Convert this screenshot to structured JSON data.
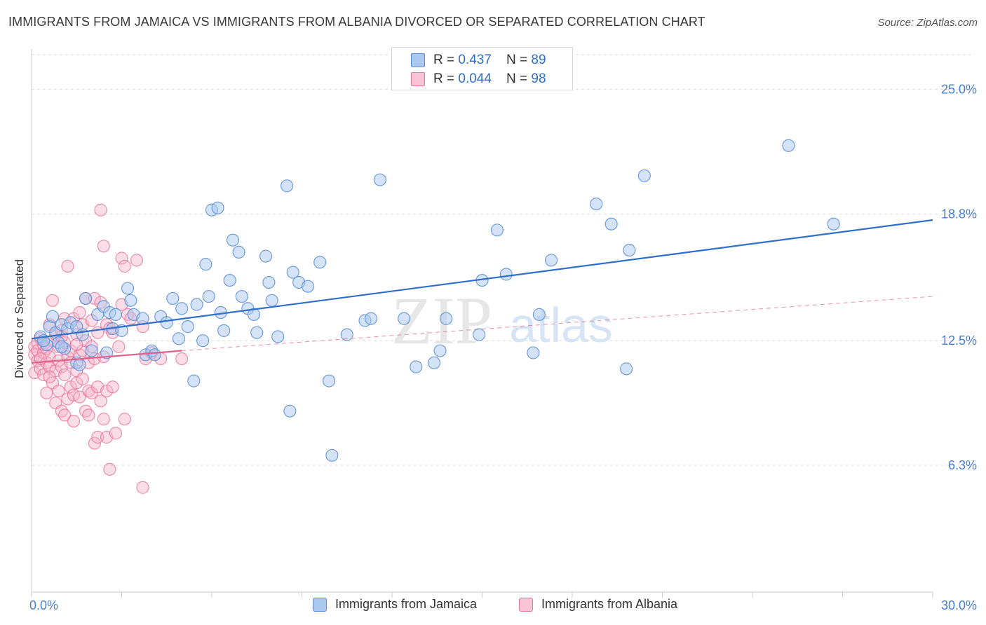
{
  "title": "IMMIGRANTS FROM JAMAICA VS IMMIGRANTS FROM ALBANIA DIVORCED OR SEPARATED CORRELATION CHART",
  "source": "Source: ZipAtlas.com",
  "watermark": {
    "zip": "ZIP",
    "atlas": "atlas"
  },
  "legend_box": {
    "rows": [
      {
        "r_label": "R = ",
        "r_value": "0.437",
        "n_label": "N = ",
        "n_value": "89"
      },
      {
        "r_label": "R = ",
        "r_value": "0.044",
        "n_label": "N = ",
        "n_value": "98"
      }
    ]
  },
  "bottom_legend": [
    "Immigrants from Jamaica",
    "Immigrants from Albania"
  ],
  "colors": {
    "jamaica_fill": "#aac8f0",
    "jamaica_stroke": "#5b8ed6",
    "jamaica_line": "#2f6fc9",
    "albania_fill": "#f7b3ca",
    "albania_stroke": "#e8759c",
    "albania_line": "#e0608c",
    "tick_label": "#4a7fcf",
    "grid": "#dddddd"
  },
  "chart_data": {
    "type": "scatter",
    "title": "IMMIGRANTS FROM JAMAICA VS IMMIGRANTS FROM ALBANIA DIVORCED OR SEPARATED CORRELATION CHART",
    "xlabel": "",
    "ylabel": "Divorced or Separated",
    "xlim": [
      0,
      30
    ],
    "ylim": [
      0,
      27
    ],
    "x_tick_labels": [
      {
        "value": 0,
        "label": "0.0%"
      },
      {
        "value": 30,
        "label": "30.0%"
      }
    ],
    "y_tick_labels": [
      {
        "value": 6.3,
        "label": "6.3%"
      },
      {
        "value": 12.5,
        "label": "12.5%"
      },
      {
        "value": 18.8,
        "label": "18.8%"
      },
      {
        "value": 25.0,
        "label": "25.0%"
      }
    ],
    "grid": true,
    "legend": "top-center",
    "series": [
      {
        "name": "Immigrants from Jamaica",
        "R": 0.437,
        "N": 89,
        "trend": {
          "x": [
            0.0,
            30.0
          ],
          "y": [
            12.6,
            18.5
          ]
        },
        "points": [
          [
            0.3,
            12.7
          ],
          [
            0.5,
            12.3
          ],
          [
            0.6,
            13.2
          ],
          [
            0.7,
            13.7
          ],
          [
            0.8,
            12.9
          ],
          [
            0.9,
            12.4
          ],
          [
            1.0,
            13.3
          ],
          [
            1.1,
            12.1
          ],
          [
            1.2,
            13.1
          ],
          [
            1.3,
            13.4
          ],
          [
            1.5,
            13.2
          ],
          [
            1.5,
            11.4
          ],
          [
            1.7,
            12.8
          ],
          [
            1.8,
            14.6
          ],
          [
            2.2,
            13.8
          ],
          [
            2.4,
            14.2
          ],
          [
            2.6,
            13.9
          ],
          [
            2.7,
            13.1
          ],
          [
            2.8,
            13.8
          ],
          [
            3.2,
            15.1
          ],
          [
            3.3,
            14.5
          ],
          [
            3.4,
            13.8
          ],
          [
            3.7,
            13.6
          ],
          [
            3.8,
            11.8
          ],
          [
            4.0,
            12.0
          ],
          [
            4.3,
            13.7
          ],
          [
            4.5,
            13.4
          ],
          [
            4.7,
            14.6
          ],
          [
            4.9,
            12.6
          ],
          [
            5.0,
            14.1
          ],
          [
            5.2,
            13.2
          ],
          [
            5.5,
            14.3
          ],
          [
            5.4,
            10.5
          ],
          [
            5.7,
            12.5
          ],
          [
            5.8,
            16.3
          ],
          [
            5.9,
            14.7
          ],
          [
            6.0,
            19.0
          ],
          [
            6.2,
            19.1
          ],
          [
            6.3,
            13.9
          ],
          [
            6.6,
            15.5
          ],
          [
            6.7,
            17.5
          ],
          [
            6.9,
            16.9
          ],
          [
            7.0,
            14.7
          ],
          [
            7.2,
            14.1
          ],
          [
            7.4,
            13.8
          ],
          [
            7.5,
            12.9
          ],
          [
            7.8,
            16.7
          ],
          [
            7.9,
            15.4
          ],
          [
            8.0,
            14.5
          ],
          [
            8.2,
            12.7
          ],
          [
            8.5,
            20.2
          ],
          [
            8.6,
            9.0
          ],
          [
            8.7,
            15.9
          ],
          [
            8.9,
            15.4
          ],
          [
            9.2,
            15.2
          ],
          [
            9.6,
            16.4
          ],
          [
            9.9,
            10.5
          ],
          [
            10.0,
            6.8
          ],
          [
            10.5,
            12.8
          ],
          [
            11.1,
            13.5
          ],
          [
            11.3,
            13.6
          ],
          [
            11.6,
            20.5
          ],
          [
            12.4,
            13.6
          ],
          [
            12.8,
            11.2
          ],
          [
            13.4,
            11.4
          ],
          [
            13.6,
            12.0
          ],
          [
            13.8,
            13.6
          ],
          [
            14.9,
            12.8
          ],
          [
            15.0,
            15.5
          ],
          [
            15.5,
            18.0
          ],
          [
            15.8,
            15.8
          ],
          [
            16.7,
            11.9
          ],
          [
            16.9,
            13.8
          ],
          [
            17.3,
            16.5
          ],
          [
            18.8,
            19.3
          ],
          [
            19.3,
            18.3
          ],
          [
            19.8,
            11.1
          ],
          [
            19.9,
            17.0
          ],
          [
            20.4,
            20.7
          ],
          [
            25.2,
            22.2
          ],
          [
            26.7,
            18.3
          ],
          [
            1.0,
            12.2
          ],
          [
            2.0,
            12.0
          ],
          [
            0.4,
            12.5
          ],
          [
            3.0,
            13.0
          ],
          [
            1.6,
            11.3
          ],
          [
            2.5,
            11.9
          ],
          [
            4.1,
            11.8
          ],
          [
            6.4,
            13.0
          ]
        ]
      },
      {
        "name": "Immigrants from Albania",
        "R": 0.044,
        "N": 98,
        "trend": {
          "x": [
            0.0,
            5.0
          ],
          "y": [
            11.4,
            12.0
          ]
        },
        "trend_dashed": {
          "x": [
            5.0,
            30.0
          ],
          "y": [
            12.0,
            14.7
          ]
        },
        "points": [
          [
            0.1,
            12.2
          ],
          [
            0.1,
            11.8
          ],
          [
            0.1,
            10.9
          ],
          [
            0.2,
            11.5
          ],
          [
            0.2,
            12.4
          ],
          [
            0.2,
            12.0
          ],
          [
            0.3,
            11.1
          ],
          [
            0.3,
            12.6
          ],
          [
            0.4,
            11.9
          ],
          [
            0.4,
            12.3
          ],
          [
            0.4,
            10.8
          ],
          [
            0.5,
            11.4
          ],
          [
            0.5,
            12.1
          ],
          [
            0.5,
            9.9
          ],
          [
            0.6,
            11.7
          ],
          [
            0.6,
            13.3
          ],
          [
            0.6,
            11.2
          ],
          [
            0.7,
            12.5
          ],
          [
            0.7,
            10.4
          ],
          [
            0.7,
            14.5
          ],
          [
            0.8,
            11.0
          ],
          [
            0.8,
            12.8
          ],
          [
            0.8,
            9.4
          ],
          [
            0.9,
            12.2
          ],
          [
            0.9,
            11.5
          ],
          [
            0.9,
            10.0
          ],
          [
            1.0,
            13.0
          ],
          [
            1.0,
            11.2
          ],
          [
            1.0,
            9.0
          ],
          [
            1.1,
            12.4
          ],
          [
            1.1,
            10.8
          ],
          [
            1.1,
            8.8
          ],
          [
            1.1,
            13.6
          ],
          [
            1.2,
            11.7
          ],
          [
            1.2,
            16.2
          ],
          [
            1.2,
            9.6
          ],
          [
            1.3,
            12.0
          ],
          [
            1.3,
            10.2
          ],
          [
            1.3,
            11.4
          ],
          [
            1.4,
            13.6
          ],
          [
            1.4,
            9.8
          ],
          [
            1.4,
            8.5
          ],
          [
            1.5,
            12.8
          ],
          [
            1.5,
            11.0
          ],
          [
            1.5,
            10.4
          ],
          [
            1.6,
            13.9
          ],
          [
            1.6,
            9.7
          ],
          [
            1.6,
            11.8
          ],
          [
            1.7,
            13.3
          ],
          [
            1.7,
            12.0
          ],
          [
            1.7,
            10.6
          ],
          [
            1.8,
            9.0
          ],
          [
            1.8,
            12.5
          ],
          [
            1.8,
            14.6
          ],
          [
            1.9,
            11.4
          ],
          [
            1.9,
            10.0
          ],
          [
            1.9,
            8.8
          ],
          [
            2.0,
            12.2
          ],
          [
            2.0,
            13.5
          ],
          [
            2.0,
            9.9
          ],
          [
            2.1,
            14.6
          ],
          [
            2.1,
            11.6
          ],
          [
            2.1,
            7.4
          ],
          [
            2.2,
            12.9
          ],
          [
            2.2,
            10.2
          ],
          [
            2.2,
            7.7
          ],
          [
            2.3,
            14.4
          ],
          [
            2.3,
            9.5
          ],
          [
            2.3,
            19.0
          ],
          [
            2.4,
            11.7
          ],
          [
            2.4,
            8.6
          ],
          [
            2.4,
            17.2
          ],
          [
            2.5,
            10.0
          ],
          [
            2.5,
            13.3
          ],
          [
            2.5,
            7.7
          ],
          [
            2.6,
            6.1
          ],
          [
            2.6,
            13.1
          ],
          [
            2.7,
            10.2
          ],
          [
            2.7,
            12.9
          ],
          [
            2.8,
            7.9
          ],
          [
            2.9,
            12.2
          ],
          [
            3.0,
            16.6
          ],
          [
            3.0,
            14.3
          ],
          [
            3.1,
            16.2
          ],
          [
            3.1,
            8.6
          ],
          [
            3.2,
            13.8
          ],
          [
            3.3,
            13.6
          ],
          [
            3.5,
            16.5
          ],
          [
            3.7,
            5.2
          ],
          [
            3.7,
            13.2
          ],
          [
            3.8,
            11.6
          ],
          [
            4.0,
            11.9
          ],
          [
            4.3,
            11.6
          ],
          [
            5.0,
            11.6
          ],
          [
            0.3,
            11.6
          ],
          [
            0.6,
            10.7
          ],
          [
            1.0,
            12.7
          ],
          [
            1.5,
            12.3
          ]
        ]
      }
    ]
  }
}
